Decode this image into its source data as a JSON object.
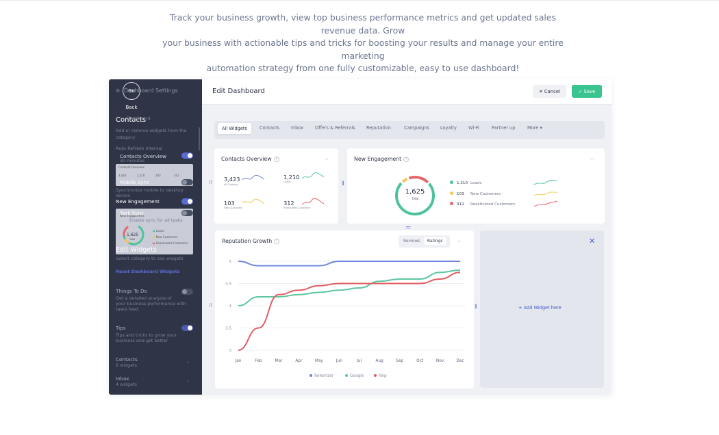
{
  "intro": {
    "line1": "Track your business growth, view top business performance metrics and get updated sales revenue data. Grow",
    "line2": "your business with actionable tips and tricks for boosting your results and manage your entire marketing",
    "line3": "automation strategy from one fully customizable, easy to use dashboard!"
  },
  "sidebar": {
    "header": "Dashboard Settings",
    "go_back": "Go Back",
    "contacts_heading": "Contacts",
    "sub_dashboard": "Dashboard",
    "desc1": "Add or remove widgets from the",
    "desc2": "category",
    "auto_refresh": "Auto-Refresh Interval",
    "auto_refresh_value": "30 minutes",
    "contacts_overview": "Contacts Overview",
    "mobile_sync": "Mobile Sync",
    "mobile_desc1": "Synchronize mobile to desktop",
    "mobile_desc2": "device",
    "new_engagement": "New Engagement",
    "task_sync": "Task Sync",
    "task_desc": "Enable sync for all tasks",
    "engagement_thumb_title": "New Engagement",
    "edit_widgets": "Edit Widgets",
    "edit_widgets_desc": "Select category to see widgets",
    "reset": "Reset Dashboard Widgets",
    "things_to_do": "Things To Do",
    "things_desc1": "Get a detailed analysis of",
    "things_desc2": "your business performance with",
    "things_desc3": "tasks feed",
    "tips": "Tips",
    "tips_desc1": "Tips and tricks to grow your",
    "tips_desc2": "business and get better",
    "contacts_nav": "Contacts",
    "contacts_count": "6 widgets",
    "inbox_nav": "Inbox",
    "inbox_count": "4 widgets",
    "thumb1": {
      "v1": "3,423",
      "v2": "1,210",
      "v3": "103",
      "v4": "312"
    },
    "thumb2": {
      "total": "1,625",
      "total_label": "Total",
      "l1": "Leads",
      "l2": "New Customers",
      "l3": "Reactivated Customers"
    }
  },
  "header": {
    "title": "Edit Dashboard",
    "cancel": "✕ Cancel",
    "save": "✓ Save"
  },
  "tabs": [
    "All Widgets",
    "Contacts",
    "Inbox",
    "Offers & Referrals",
    "Reputation",
    "Campaigns",
    "Loyalty",
    "Wi-Fi",
    "Partner up",
    "More ▾"
  ],
  "contacts_overview": {
    "title": "Contacts Overview",
    "help": "?",
    "menu": "···",
    "stats": [
      {
        "value": "3,423",
        "label": "All Contacts"
      },
      {
        "value": "1,210",
        "label": "Leads"
      },
      {
        "value": "103",
        "label": "New Customers"
      },
      {
        "value": "312",
        "label": "Reactivated Customers"
      }
    ]
  },
  "engagement": {
    "title": "New Engagement",
    "total": "1,625",
    "total_label": "Total",
    "rows": [
      {
        "value": "1,210",
        "label": "Leads",
        "color": "#4cc39a"
      },
      {
        "value": "103",
        "label": "New Customers",
        "color": "#f3c65a"
      },
      {
        "value": "312",
        "label": "Reactivated Customers",
        "color": "#e8646b"
      }
    ]
  },
  "reputation": {
    "title": "Reputation Growth",
    "seg_reviews": "Reviews",
    "seg_ratings": "Ratings"
  },
  "add_widget": {
    "close": "✕",
    "label": "+  Add Widget here"
  },
  "chart_data": {
    "type": "line",
    "title": "Reputation Growth",
    "categories": [
      "Jan",
      "Feb",
      "Mar",
      "Apr",
      "May",
      "Jun",
      "Jul",
      "Aug",
      "Sep",
      "Oct",
      "Nov",
      "Dec"
    ],
    "yticks": [
      "5",
      "4.5",
      "4",
      "3.5",
      "3"
    ],
    "ylim": [
      3,
      5
    ],
    "series": [
      {
        "name": "Referrizer",
        "color": "#6d86e0",
        "values": [
          5.0,
          4.9,
          4.9,
          4.9,
          4.9,
          5.0,
          5.0,
          5.0,
          5.0,
          5.0,
          5.0,
          5.0
        ]
      },
      {
        "name": "Google",
        "color": "#5cc79e",
        "values": [
          4.0,
          4.2,
          4.2,
          4.25,
          4.3,
          4.35,
          4.4,
          4.55,
          4.6,
          4.6,
          4.75,
          4.8
        ]
      },
      {
        "name": "Yelp",
        "color": "#e35c63",
        "values": [
          3.0,
          3.5,
          4.25,
          4.35,
          4.45,
          4.5,
          4.5,
          4.5,
          4.5,
          4.5,
          4.6,
          4.75
        ]
      }
    ],
    "legend": "bottom"
  }
}
